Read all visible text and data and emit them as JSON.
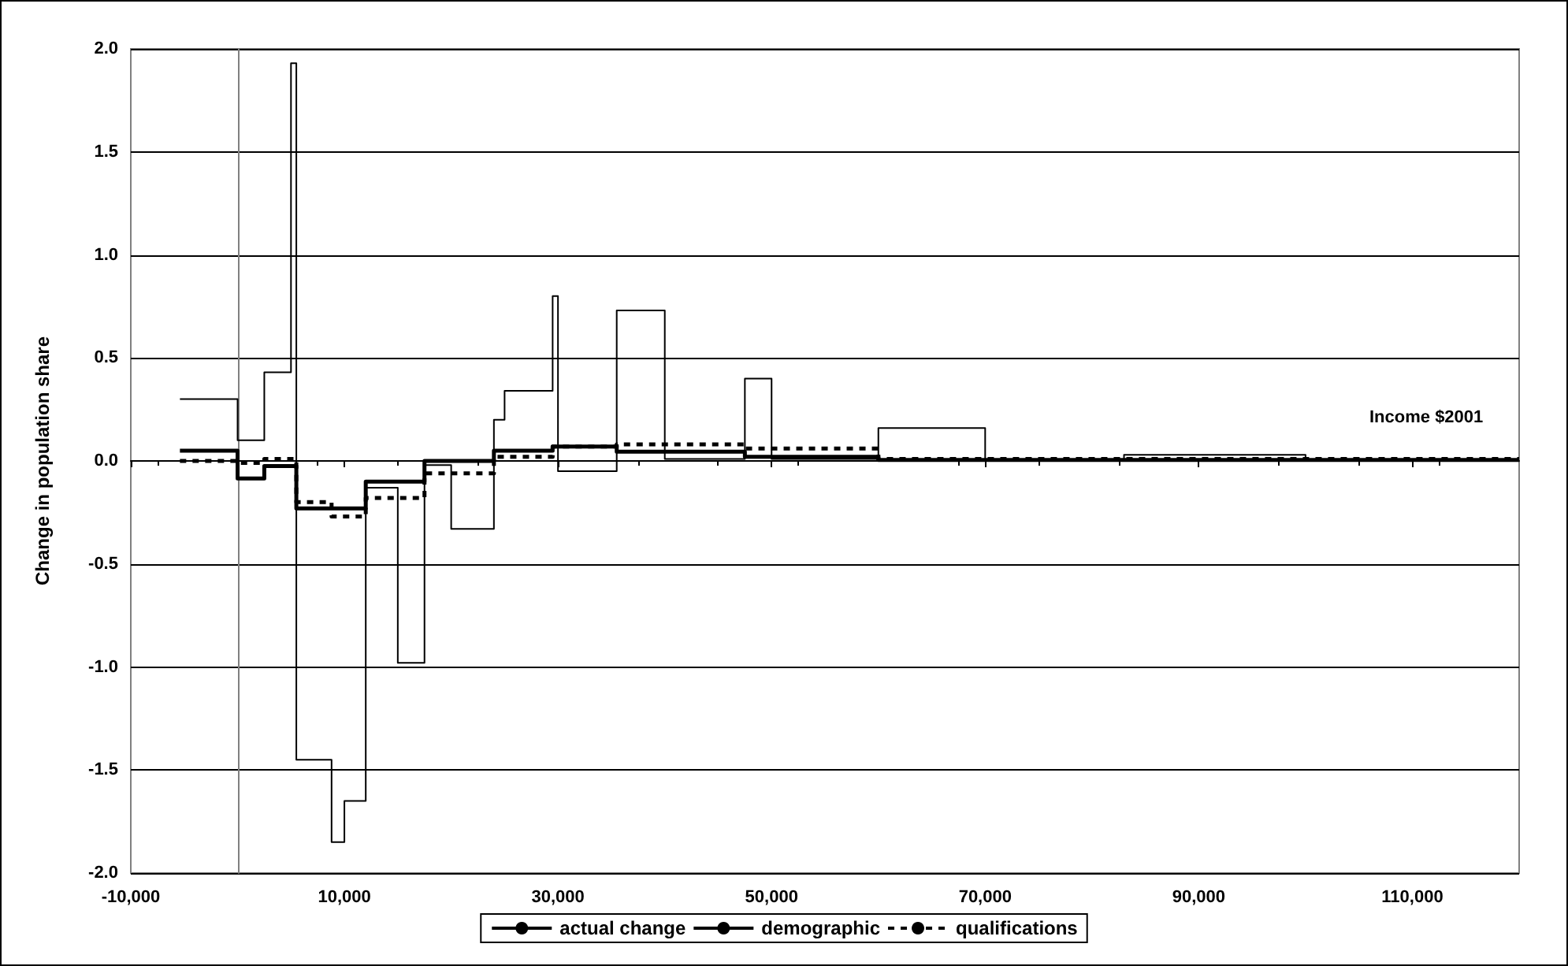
{
  "chart_data": {
    "type": "step",
    "xlabel": "Income $2001",
    "ylabel": "Change in population share",
    "xlim": [
      -10000,
      120000
    ],
    "xticks": [
      {
        "value": -10000,
        "label": "-10,000"
      },
      {
        "value": 10000,
        "label": "10,000"
      },
      {
        "value": 30000,
        "label": "30,000"
      },
      {
        "value": 50000,
        "label": "50,000"
      },
      {
        "value": 70000,
        "label": "70,000"
      },
      {
        "value": 90000,
        "label": "90,000"
      },
      {
        "value": 110000,
        "label": "110,000"
      }
    ],
    "ylim": [
      -2,
      2
    ],
    "yticks": [
      {
        "value": -2,
        "label": "-2.0"
      },
      {
        "value": -1.5,
        "label": "-1.5"
      },
      {
        "value": -1,
        "label": "-1.0"
      },
      {
        "value": -0.5,
        "label": "-0.5"
      },
      {
        "value": 0,
        "label": "0.0"
      },
      {
        "value": 0.5,
        "label": "0.5"
      },
      {
        "value": 1,
        "label": "1.0"
      },
      {
        "value": 1.5,
        "label": "1.5"
      },
      {
        "value": 2,
        "label": "2.0"
      }
    ],
    "grid": "y",
    "legend": "bottom",
    "marker": "none",
    "series": [
      {
        "name": "actual change",
        "color": "#000000",
        "line_style": "solid",
        "x": [
          -5400,
          0,
          2500,
          5000,
          5500,
          8800,
          10000,
          12000,
          15000,
          17500,
          20000,
          24000,
          25000,
          29500,
          30000,
          35500,
          40000,
          47500,
          50000,
          60000,
          70000,
          83000,
          100000,
          120000
        ],
        "values": [
          0.3,
          0.1,
          0.43,
          1.93,
          -1.45,
          -1.85,
          -1.65,
          -0.13,
          -0.98,
          -0.02,
          -0.33,
          0.2,
          0.34,
          0.8,
          -0.05,
          0.73,
          0.01,
          0.4,
          0.01,
          0.16,
          0.0,
          0.03,
          0.0,
          0.0
        ]
      },
      {
        "name": "demographic",
        "color": "#000000",
        "line_style": "solid",
        "x": [
          -5400,
          0,
          2500,
          5500,
          12000,
          17500,
          24000,
          29500,
          35500,
          47500,
          60000,
          120000
        ],
        "values": [
          0.05,
          -0.085,
          -0.025,
          -0.23,
          -0.1,
          0.0,
          0.05,
          0.07,
          0.045,
          0.02,
          0.005,
          0.005
        ]
      },
      {
        "name": "qualifications",
        "color": "#000000",
        "line_style": "dashed",
        "x": [
          -5400,
          0,
          2500,
          5500,
          8800,
          12000,
          17500,
          24000,
          29500,
          35500,
          47500,
          60000,
          120000
        ],
        "values": [
          0.0,
          -0.01,
          0.01,
          -0.2,
          -0.27,
          -0.18,
          -0.06,
          0.02,
          0.07,
          0.08,
          0.06,
          0.01,
          0.01
        ]
      }
    ]
  }
}
